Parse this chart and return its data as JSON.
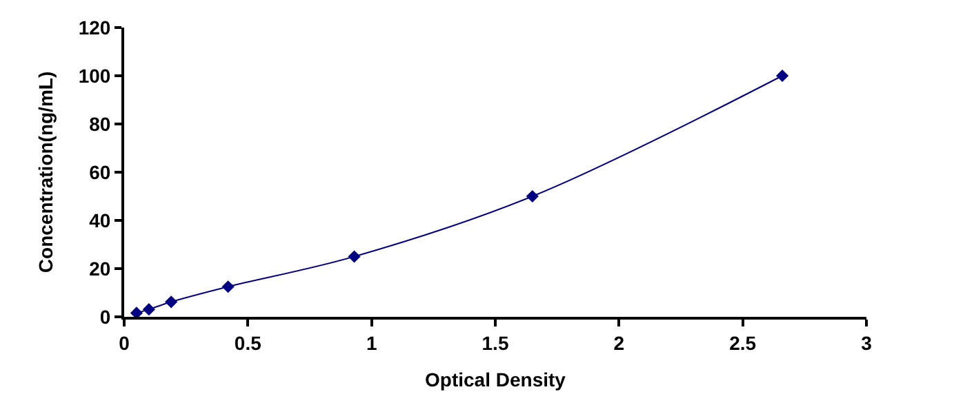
{
  "chart_data": {
    "type": "line",
    "xlabel": "Optical Density",
    "ylabel": "Concentration(ng/mL)",
    "x": [
      0.05,
      0.1,
      0.19,
      0.42,
      0.93,
      1.65,
      2.66
    ],
    "series": [
      {
        "color": "#000080",
        "values": [
          1.6,
          3.1,
          6.2,
          12.5,
          25,
          50,
          100
        ]
      }
    ],
    "xlim": [
      0,
      3
    ],
    "xticks": [
      0,
      0.5,
      1,
      1.5,
      2,
      2.5,
      3
    ],
    "ylim": [
      0,
      120
    ],
    "yticks": [
      0,
      20,
      40,
      60,
      80,
      100,
      120
    ],
    "legend": false,
    "marker": "diamond",
    "line_style": "solid"
  }
}
